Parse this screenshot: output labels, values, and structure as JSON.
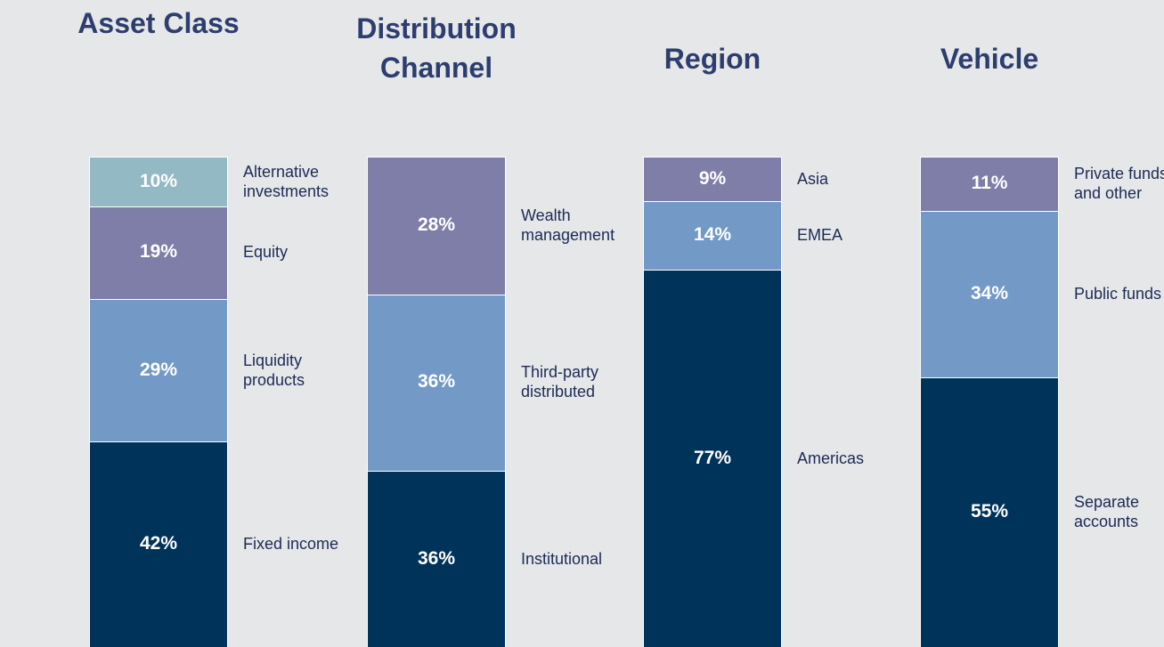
{
  "chart_data": [
    {
      "type": "bar",
      "stacked": true,
      "title": "Asset Class",
      "ylim": [
        0,
        100
      ],
      "series": [
        {
          "name": "Fixed income",
          "color": "#003359",
          "values": [
            42
          ],
          "value_labels": [
            "42%"
          ]
        },
        {
          "name": "Liquidity products",
          "color": "#7399c6",
          "values": [
            29
          ],
          "value_labels": [
            "29%"
          ]
        },
        {
          "name": "Equity",
          "color": "#7f7ea8",
          "values": [
            19
          ],
          "value_labels": [
            "19%"
          ]
        },
        {
          "name": "Alternative investments",
          "color": "#92b9c4",
          "values": [
            10
          ],
          "value_labels": [
            "10%"
          ]
        }
      ]
    },
    {
      "type": "bar",
      "stacked": true,
      "title": "Distribution Channel",
      "ylim": [
        0,
        100
      ],
      "series": [
        {
          "name": "Institutional",
          "color": "#003359",
          "values": [
            36
          ],
          "value_labels": [
            "36%"
          ]
        },
        {
          "name": "Third-party distributed",
          "color": "#7399c6",
          "values": [
            36
          ],
          "value_labels": [
            "36%"
          ]
        },
        {
          "name": "Wealth management",
          "color": "#7f7ea8",
          "values": [
            28
          ],
          "value_labels": [
            "28%"
          ]
        }
      ]
    },
    {
      "type": "bar",
      "stacked": true,
      "title": "Region",
      "ylim": [
        0,
        100
      ],
      "series": [
        {
          "name": "Americas",
          "color": "#003359",
          "values": [
            77
          ],
          "value_labels": [
            "77%"
          ]
        },
        {
          "name": "EMEA",
          "color": "#7399c6",
          "values": [
            14
          ],
          "value_labels": [
            "14%"
          ]
        },
        {
          "name": "Asia",
          "color": "#7f7ea8",
          "values": [
            9
          ],
          "value_labels": [
            "9%"
          ]
        }
      ]
    },
    {
      "type": "bar",
      "stacked": true,
      "title": "Vehicle",
      "ylim": [
        0,
        100
      ],
      "series": [
        {
          "name": "Separate accounts",
          "color": "#003359",
          "values": [
            55
          ],
          "value_labels": [
            "55%"
          ]
        },
        {
          "name": "Public funds",
          "color": "#7399c6",
          "values": [
            34
          ],
          "value_labels": [
            "34%"
          ]
        },
        {
          "name": "Private funds and other",
          "color": "#7f7ea8",
          "values": [
            11
          ],
          "value_labels": [
            "11%"
          ]
        }
      ]
    }
  ]
}
